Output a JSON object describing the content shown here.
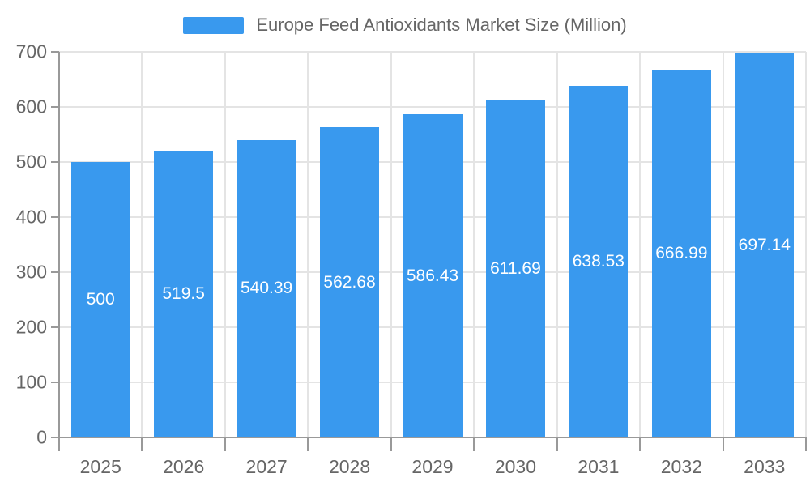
{
  "chart_data": {
    "type": "bar",
    "title": "Europe Feed Antioxidants Market Size (Million)",
    "categories": [
      "2025",
      "2026",
      "2027",
      "2028",
      "2029",
      "2030",
      "2031",
      "2032",
      "2033"
    ],
    "values": [
      500,
      519.5,
      540.39,
      562.68,
      586.43,
      611.69,
      638.53,
      666.99,
      697.14
    ],
    "value_labels": [
      "500",
      "519.5",
      "540.39",
      "562.68",
      "586.43",
      "611.69",
      "638.53",
      "666.99",
      "697.14"
    ],
    "xlabel": "",
    "ylabel": "",
    "ylim": [
      0,
      700
    ],
    "ytick_step": 100,
    "ytick_labels": [
      "0",
      "100",
      "200",
      "300",
      "400",
      "500",
      "600",
      "700"
    ],
    "grid": "both",
    "legend_position": "top",
    "colors": {
      "bar": "#3999EE",
      "grid": "#E4E4E4",
      "axis": "#999999",
      "tick_text": "#666666",
      "legend_text": "#666666",
      "value_text": "#FFFFFF",
      "background": "#FFFFFF"
    }
  }
}
